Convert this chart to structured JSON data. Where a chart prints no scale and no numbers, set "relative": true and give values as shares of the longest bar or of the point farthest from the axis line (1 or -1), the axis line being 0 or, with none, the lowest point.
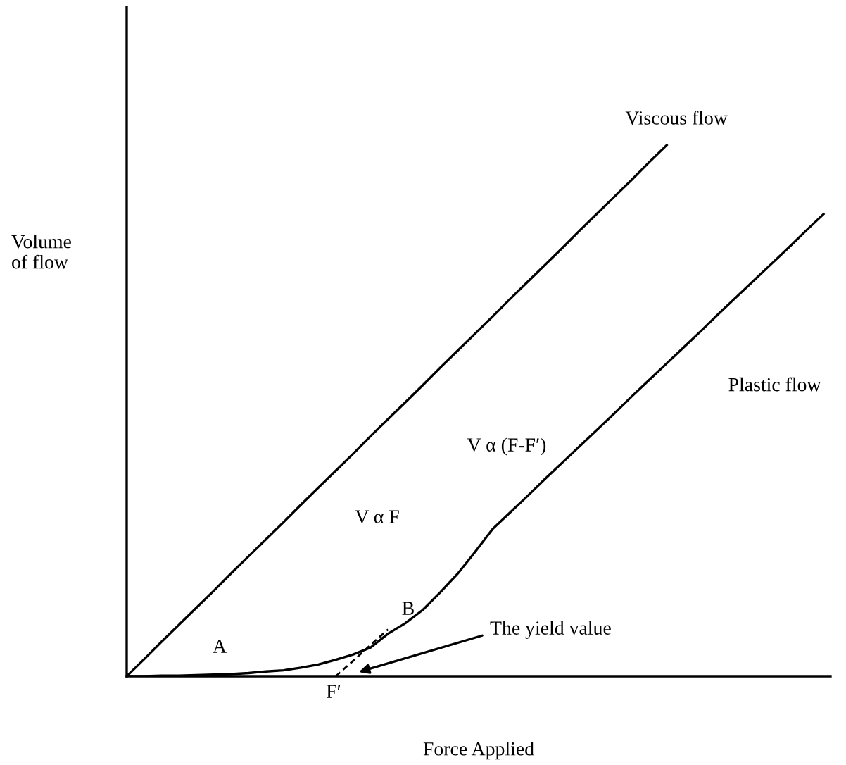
{
  "chart_data": {
    "type": "line",
    "relative": true,
    "xlabel": "Force Applied",
    "ylabel": "Volume\nof flow",
    "categories": [
      null,
      null,
      null,
      null,
      null,
      null,
      null,
      null,
      null,
      null,
      null,
      null,
      null,
      null,
      null,
      null,
      null,
      null,
      null,
      null,
      null,
      null,
      null,
      null,
      null,
      null,
      null,
      null,
      null,
      null,
      null,
      null,
      null,
      null,
      null,
      null,
      null,
      null,
      null,
      null,
      null
    ],
    "series": [
      {
        "name": "Viscous flow",
        "color": "#000000",
        "values": [
          0,
          0.032,
          0.065,
          0.097,
          0.129,
          0.161,
          0.194,
          0.226,
          0.258,
          0.29,
          0.323,
          0.355,
          0.387,
          0.419,
          0.452,
          0.484,
          0.516,
          0.548,
          0.581,
          0.613,
          0.645,
          0.677,
          0.71,
          0.742,
          0.774,
          0.806,
          0.839,
          0.871,
          0.903,
          0.935,
          0.968,
          1.0,
          null,
          null,
          null,
          null,
          null,
          null,
          null,
          null,
          null
        ]
      },
      {
        "name": "Plastic flow",
        "color": "#000000",
        "values": [
          0,
          0,
          0.001,
          0.001,
          0.002,
          0.003,
          0.004,
          0.006,
          0.009,
          0.011,
          0.016,
          0.022,
          0.031,
          0.041,
          0.054,
          0.08,
          0.1,
          0.125,
          0.158,
          0.193,
          0.234,
          0.277,
          0.308,
          0.339,
          0.371,
          0.402,
          0.433,
          0.464,
          0.495,
          0.527,
          0.558,
          0.589,
          0.62,
          0.651,
          0.683,
          0.714,
          0.745,
          0.776,
          0.807,
          0.839,
          0.87
        ]
      },
      {
        "color": "#000000",
        "line_style": "dashed",
        "values": [
          null,
          null,
          null,
          null,
          null,
          null,
          null,
          null,
          null,
          null,
          null,
          null,
          0,
          0.029,
          0.059,
          0.088,
          null,
          null,
          null,
          null,
          null,
          null,
          null,
          null,
          null,
          null,
          null,
          null,
          null,
          null,
          null,
          null,
          null,
          null,
          null,
          null,
          null,
          null,
          null,
          null,
          null
        ]
      }
    ],
    "annotations": [
      "A",
      "B",
      "F′",
      "V α F",
      "V α (F-F′)",
      "The yield value"
    ]
  }
}
